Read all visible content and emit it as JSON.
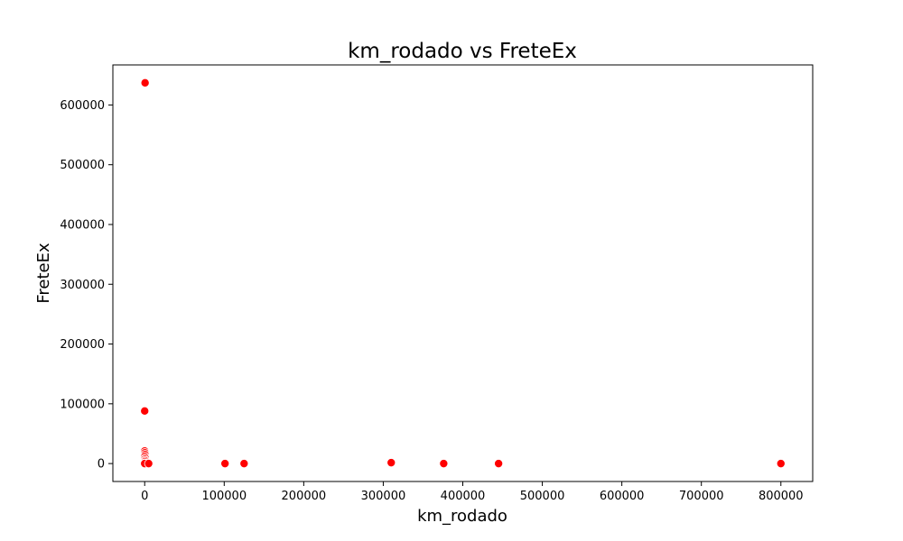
{
  "chart_data": {
    "type": "scatter",
    "title": "km_rodado vs FreteEx",
    "xlabel": "km_rodado",
    "ylabel": "FreteEx",
    "xlim": [
      -40000,
      840000
    ],
    "ylim": [
      -30000,
      667000
    ],
    "xticks": [
      0,
      100000,
      200000,
      300000,
      400000,
      500000,
      600000,
      700000,
      800000
    ],
    "xtick_labels": [
      "0",
      "100000",
      "200000",
      "300000",
      "400000",
      "500000",
      "600000",
      "700000",
      "800000"
    ],
    "yticks": [
      0,
      100000,
      200000,
      300000,
      400000,
      500000,
      600000
    ],
    "ytick_labels": [
      "0",
      "100000",
      "200000",
      "300000",
      "400000",
      "500000",
      "600000"
    ],
    "grid": false,
    "marker_color": "#ff0000",
    "marker_edge_color": "#ffffff",
    "points": [
      {
        "x": 500,
        "y": 637000
      },
      {
        "x": 0,
        "y": 88000
      },
      {
        "x": 0,
        "y": 21000
      },
      {
        "x": 300,
        "y": 18000
      },
      {
        "x": 500,
        "y": 15000
      },
      {
        "x": 200,
        "y": 12000
      },
      {
        "x": 700,
        "y": 9000
      },
      {
        "x": 0,
        "y": 7000
      },
      {
        "x": 400,
        "y": 5000
      },
      {
        "x": 100,
        "y": 3000
      },
      {
        "x": 0,
        "y": 1000
      },
      {
        "x": 1000,
        "y": 500
      },
      {
        "x": 0,
        "y": 0
      },
      {
        "x": 5000,
        "y": 0
      },
      {
        "x": 101000,
        "y": 0
      },
      {
        "x": 125000,
        "y": 0
      },
      {
        "x": 310000,
        "y": 1500
      },
      {
        "x": 376000,
        "y": 0
      },
      {
        "x": 445000,
        "y": 0
      },
      {
        "x": 800000,
        "y": 0
      }
    ]
  }
}
